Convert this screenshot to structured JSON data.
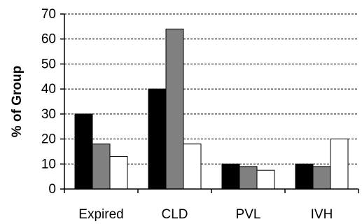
{
  "chart_data": {
    "type": "bar",
    "title": "",
    "xlabel": "",
    "ylabel": "% of Group",
    "ylim": [
      0,
      70
    ],
    "yticks": [
      0,
      10,
      20,
      30,
      40,
      50,
      60,
      70
    ],
    "grid": "horizontal dashed",
    "legend": "none",
    "categories": [
      "Expired",
      "CLD",
      "PVL",
      "IVH"
    ],
    "series": [
      {
        "color": "#000000",
        "values": [
          30,
          40,
          10,
          10
        ]
      },
      {
        "color": "#808080",
        "values": [
          18,
          64,
          9,
          9
        ]
      },
      {
        "color": "#ffffff",
        "values": [
          13,
          18,
          7.5,
          20
        ]
      }
    ]
  }
}
